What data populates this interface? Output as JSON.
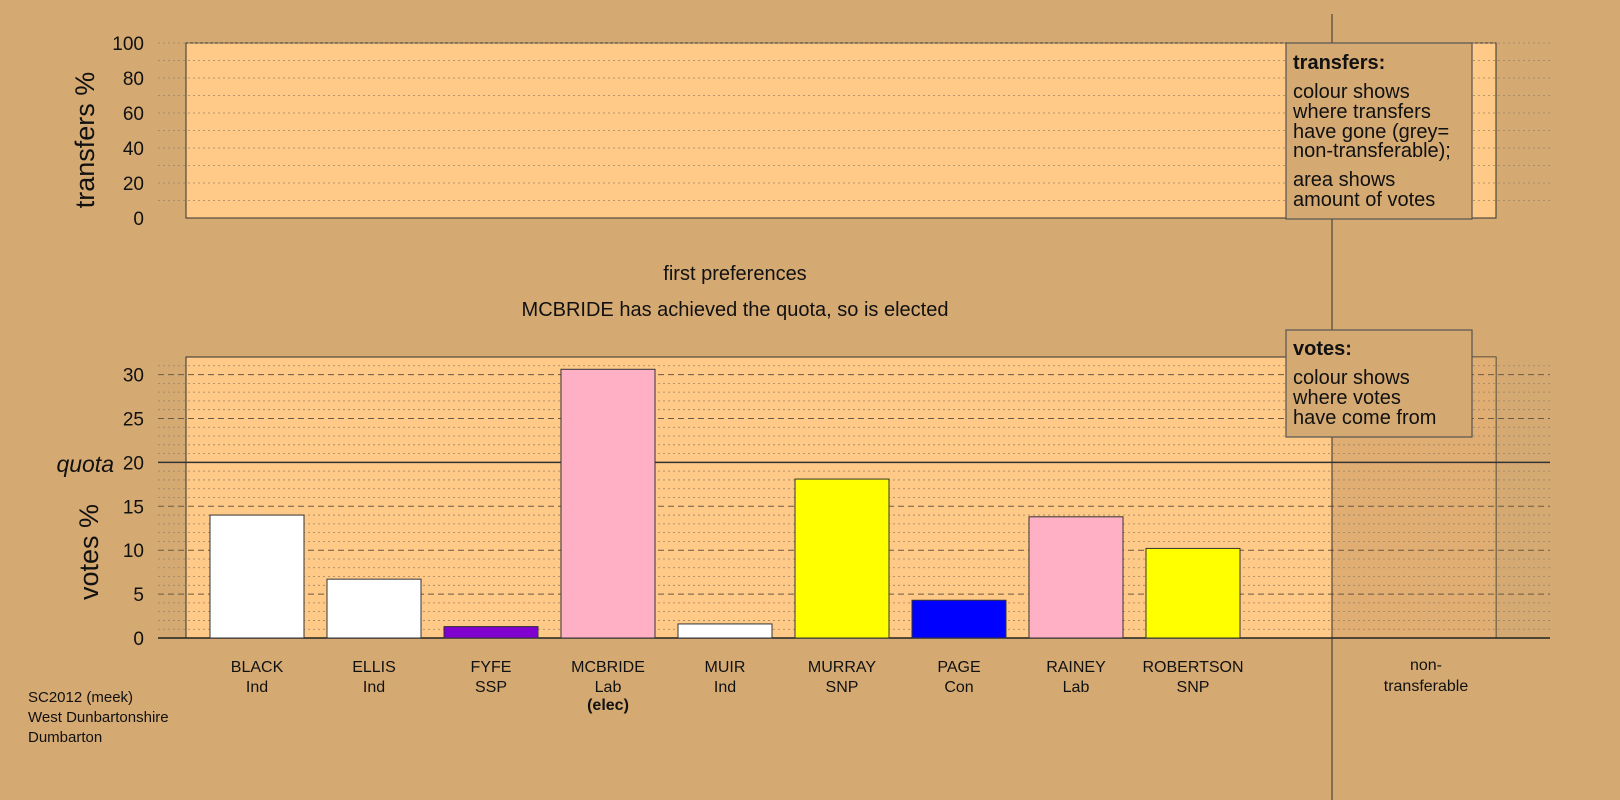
{
  "chart_data": {
    "type": "bar",
    "transfers_panel": {
      "ylabel": "transfers %",
      "ylim": [
        0,
        100
      ],
      "ticks": [
        0,
        20,
        40,
        60,
        80,
        100
      ],
      "legend": {
        "heading": "transfers:",
        "lines": [
          "colour shows",
          "where transfers",
          "have gone (grey=",
          "non-transferable);",
          "area shows",
          "amount of votes"
        ]
      }
    },
    "stage_title": "first preferences",
    "stage_message": "MCBRIDE has achieved the quota, so is elected",
    "votes_panel": {
      "ylabel": "votes %",
      "ylim": [
        0,
        32
      ],
      "ticks": [
        0,
        5,
        10,
        15,
        20,
        25,
        30
      ],
      "quota_value": 20,
      "quota_label": "quota",
      "legend": {
        "heading": "votes:",
        "lines": [
          "colour shows",
          "where votes",
          "have come from"
        ]
      }
    },
    "categories": [
      {
        "name": "BLACK",
        "party": "Ind",
        "value": 14.0,
        "color": "#ffffff",
        "status": ""
      },
      {
        "name": "ELLIS",
        "party": "Ind",
        "value": 6.7,
        "color": "#ffffff",
        "status": ""
      },
      {
        "name": "FYFE",
        "party": "SSP",
        "value": 1.3,
        "color": "#8000d0",
        "status": ""
      },
      {
        "name": "MCBRIDE",
        "party": "Lab",
        "value": 30.6,
        "color": "#ffb0c4",
        "status": "(elec)"
      },
      {
        "name": "MUIR",
        "party": "Ind",
        "value": 1.6,
        "color": "#ffffff",
        "status": ""
      },
      {
        "name": "MURRAY",
        "party": "SNP",
        "value": 18.1,
        "color": "#ffff00",
        "status": ""
      },
      {
        "name": "PAGE",
        "party": "Con",
        "value": 4.3,
        "color": "#0000ff",
        "status": ""
      },
      {
        "name": "RAINEY",
        "party": "Lab",
        "value": 13.8,
        "color": "#ffb0c4",
        "status": ""
      },
      {
        "name": "ROBERTSON",
        "party": "SNP",
        "value": 10.2,
        "color": "#ffff00",
        "status": ""
      }
    ],
    "non_transferable": {
      "label_line1": "non-",
      "label_line2": "transferable",
      "value": 0
    }
  },
  "footer": {
    "line1": "SC2012 (meek)",
    "line2": "West Dunbartonshire",
    "line3": "Dumbarton"
  }
}
